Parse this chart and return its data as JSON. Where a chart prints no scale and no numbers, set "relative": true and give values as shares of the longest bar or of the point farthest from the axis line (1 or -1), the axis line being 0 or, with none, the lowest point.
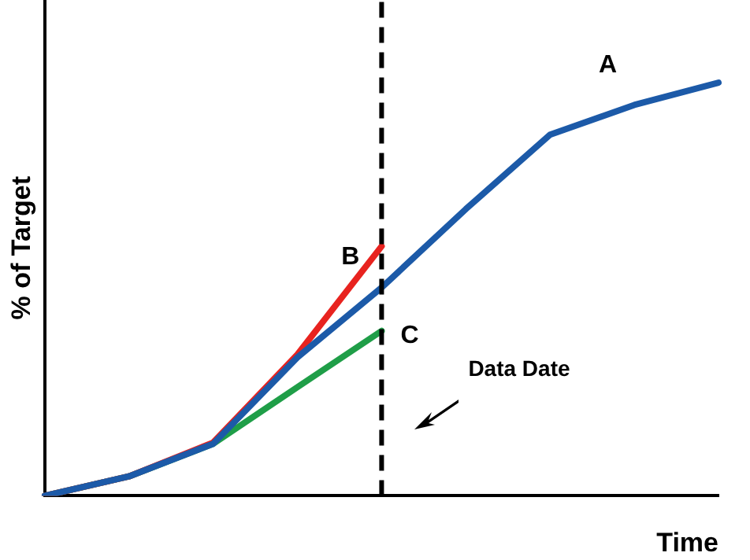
{
  "chart_data": {
    "type": "line",
    "relative": true,
    "xlabel": "Time",
    "ylabel": "% of Target",
    "categories": [
      null,
      null,
      null,
      null,
      null,
      null,
      null,
      null,
      null
    ],
    "series": [
      {
        "name": "A",
        "color": "#1c5aa8",
        "values": [
          0,
          0.047,
          0.126,
          0.335,
          0.504,
          0.694,
          0.874,
          0.946,
          1
        ]
      },
      {
        "name": "B",
        "color": "#e8231f",
        "values": [
          0,
          0.047,
          0.129,
          0.342,
          0.604,
          null,
          null,
          null,
          null
        ]
      },
      {
        "name": "C",
        "color": "#1f9e48",
        "values": [
          0,
          0.047,
          0.126,
          0.263,
          0.399,
          null,
          null,
          null,
          null
        ]
      }
    ],
    "annotations": [
      "Data Date"
    ],
    "legend": false,
    "grid": false,
    "marker": "none",
    "line_style": "solid"
  }
}
